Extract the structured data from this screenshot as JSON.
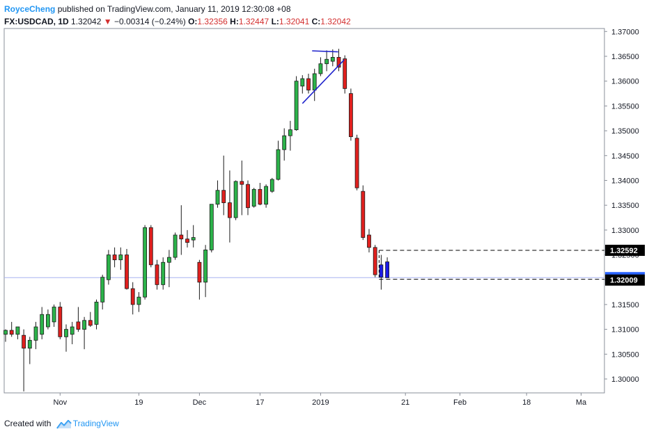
{
  "header": {
    "author": "RoyceCheng",
    "published_text": "published on TradingView.com, January 11, 2019 12:30:08 +08",
    "symbol": "FX:USDCAD, 1D",
    "last": "1.32042",
    "change_arrow": "▼",
    "change": "−0.00314 (−0.24%)",
    "o_label": "O:",
    "o_value": "1.32356",
    "h_label": "H:",
    "h_value": "1.32447",
    "l_label": "L:",
    "l_value": "1.32041",
    "c_label": "C:",
    "c_value": "1.32042"
  },
  "footer": {
    "created_with": "Created with",
    "brand": "TradingView",
    "logo_icon": "tradingview-logo-icon"
  },
  "colors": {
    "up": "#2cb34a",
    "down": "#e0201e",
    "neutral": "#1a1ae6",
    "trendline": "#1e22cc",
    "price_line": "#a8b4f0",
    "label_bg_dark": "#000000",
    "label_bg_blue": "#2962ff"
  },
  "chart_data": {
    "type": "candlestick",
    "symbol": "FX:USDCAD",
    "interval": "1D",
    "y_axis": {
      "range": [
        1.2972,
        1.3706
      ],
      "ticks": [
        "1.37000",
        "1.36500",
        "1.36000",
        "1.35500",
        "1.35000",
        "1.34500",
        "1.34000",
        "1.33500",
        "1.33000",
        "1.32500",
        "1.32000",
        "1.31500",
        "1.31000",
        "1.30500",
        "1.30000"
      ]
    },
    "x_axis": {
      "labels": [
        {
          "text": "Nov",
          "index": 9
        },
        {
          "text": "19",
          "index": 22
        },
        {
          "text": "Dec",
          "index": 32
        },
        {
          "text": "17",
          "index": 42
        },
        {
          "text": "2019",
          "index": 52
        },
        {
          "text": "21",
          "index": 66
        },
        {
          "text": "Feb",
          "index": 75
        },
        {
          "text": "18",
          "index": 86
        },
        {
          "text": "Ma",
          "index": 95
        }
      ]
    },
    "grid": false,
    "candles": [
      {
        "o": 1.309,
        "h": 1.31,
        "l": 1.3075,
        "c": 1.3098
      },
      {
        "o": 1.3098,
        "h": 1.3115,
        "l": 1.3085,
        "c": 1.309
      },
      {
        "o": 1.309,
        "h": 1.3105,
        "l": 1.308,
        "c": 1.3105
      },
      {
        "o": 1.3088,
        "h": 1.31,
        "l": 1.2975,
        "c": 1.3062
      },
      {
        "o": 1.3062,
        "h": 1.3085,
        "l": 1.303,
        "c": 1.3078
      },
      {
        "o": 1.3078,
        "h": 1.3115,
        "l": 1.306,
        "c": 1.3105
      },
      {
        "o": 1.309,
        "h": 1.3145,
        "l": 1.308,
        "c": 1.313
      },
      {
        "o": 1.3105,
        "h": 1.314,
        "l": 1.31,
        "c": 1.313
      },
      {
        "o": 1.3115,
        "h": 1.315,
        "l": 1.3105,
        "c": 1.3145
      },
      {
        "o": 1.3145,
        "h": 1.3155,
        "l": 1.308,
        "c": 1.3085
      },
      {
        "o": 1.3085,
        "h": 1.311,
        "l": 1.3055,
        "c": 1.31
      },
      {
        "o": 1.309,
        "h": 1.3115,
        "l": 1.307,
        "c": 1.3105
      },
      {
        "o": 1.3115,
        "h": 1.3145,
        "l": 1.3095,
        "c": 1.31
      },
      {
        "o": 1.31,
        "h": 1.3125,
        "l": 1.306,
        "c": 1.3118
      },
      {
        "o": 1.3118,
        "h": 1.3135,
        "l": 1.3105,
        "c": 1.3108
      },
      {
        "o": 1.311,
        "h": 1.316,
        "l": 1.31,
        "c": 1.3155
      },
      {
        "o": 1.3155,
        "h": 1.321,
        "l": 1.314,
        "c": 1.3205
      },
      {
        "o": 1.32,
        "h": 1.326,
        "l": 1.319,
        "c": 1.325
      },
      {
        "o": 1.325,
        "h": 1.3265,
        "l": 1.3225,
        "c": 1.324
      },
      {
        "o": 1.324,
        "h": 1.3265,
        "l": 1.322,
        "c": 1.325
      },
      {
        "o": 1.325,
        "h": 1.3262,
        "l": 1.318,
        "c": 1.3182
      },
      {
        "o": 1.3182,
        "h": 1.3195,
        "l": 1.313,
        "c": 1.315
      },
      {
        "o": 1.315,
        "h": 1.3175,
        "l": 1.3135,
        "c": 1.3165
      },
      {
        "o": 1.3165,
        "h": 1.331,
        "l": 1.316,
        "c": 1.3305
      },
      {
        "o": 1.3305,
        "h": 1.331,
        "l": 1.3225,
        "c": 1.323
      },
      {
        "o": 1.323,
        "h": 1.324,
        "l": 1.318,
        "c": 1.319
      },
      {
        "o": 1.319,
        "h": 1.3245,
        "l": 1.318,
        "c": 1.3235
      },
      {
        "o": 1.3235,
        "h": 1.326,
        "l": 1.3185,
        "c": 1.3245
      },
      {
        "o": 1.3245,
        "h": 1.3295,
        "l": 1.324,
        "c": 1.329
      },
      {
        "o": 1.329,
        "h": 1.335,
        "l": 1.325,
        "c": 1.3282
      },
      {
        "o": 1.3282,
        "h": 1.33,
        "l": 1.3265,
        "c": 1.3275
      },
      {
        "o": 1.328,
        "h": 1.331,
        "l": 1.3265,
        "c": 1.3285
      },
      {
        "o": 1.3235,
        "h": 1.324,
        "l": 1.316,
        "c": 1.3195
      },
      {
        "o": 1.3195,
        "h": 1.327,
        "l": 1.3165,
        "c": 1.326
      },
      {
        "o": 1.326,
        "h": 1.335,
        "l": 1.3255,
        "c": 1.3352
      },
      {
        "o": 1.3352,
        "h": 1.34,
        "l": 1.3345,
        "c": 1.338
      },
      {
        "o": 1.338,
        "h": 1.345,
        "l": 1.333,
        "c": 1.3355
      },
      {
        "o": 1.3355,
        "h": 1.342,
        "l": 1.3275,
        "c": 1.3325
      },
      {
        "o": 1.3325,
        "h": 1.34,
        "l": 1.332,
        "c": 1.3398
      },
      {
        "o": 1.3398,
        "h": 1.344,
        "l": 1.333,
        "c": 1.3392
      },
      {
        "o": 1.3392,
        "h": 1.34,
        "l": 1.333,
        "c": 1.3345
      },
      {
        "o": 1.3348,
        "h": 1.3385,
        "l": 1.3345,
        "c": 1.3382
      },
      {
        "o": 1.3382,
        "h": 1.3395,
        "l": 1.335,
        "c": 1.3352
      },
      {
        "o": 1.3352,
        "h": 1.3392,
        "l": 1.3345,
        "c": 1.3388
      },
      {
        "o": 1.3378,
        "h": 1.3405,
        "l": 1.3375,
        "c": 1.3402
      },
      {
        "o": 1.3402,
        "h": 1.348,
        "l": 1.34,
        "c": 1.3462
      },
      {
        "o": 1.3462,
        "h": 1.3505,
        "l": 1.344,
        "c": 1.349
      },
      {
        "o": 1.349,
        "h": 1.352,
        "l": 1.346,
        "c": 1.3502
      },
      {
        "o": 1.3502,
        "h": 1.361,
        "l": 1.35,
        "c": 1.36
      },
      {
        "o": 1.359,
        "h": 1.3612,
        "l": 1.3575,
        "c": 1.3605
      },
      {
        "o": 1.3605,
        "h": 1.3615,
        "l": 1.3575,
        "c": 1.3582
      },
      {
        "o": 1.3582,
        "h": 1.3625,
        "l": 1.356,
        "c": 1.3615
      },
      {
        "o": 1.3615,
        "h": 1.3648,
        "l": 1.361,
        "c": 1.3635
      },
      {
        "o": 1.3635,
        "h": 1.3662,
        "l": 1.362,
        "c": 1.3644
      },
      {
        "o": 1.364,
        "h": 1.3664,
        "l": 1.363,
        "c": 1.3648
      },
      {
        "o": 1.3648,
        "h": 1.3665,
        "l": 1.362,
        "c": 1.3628
      },
      {
        "o": 1.3645,
        "h": 1.3652,
        "l": 1.3575,
        "c": 1.3585
      },
      {
        "o": 1.3575,
        "h": 1.3585,
        "l": 1.348,
        "c": 1.3488
      },
      {
        "o": 1.3485,
        "h": 1.3492,
        "l": 1.338,
        "c": 1.3385
      },
      {
        "o": 1.3378,
        "h": 1.339,
        "l": 1.328,
        "c": 1.3285
      },
      {
        "o": 1.329,
        "h": 1.3302,
        "l": 1.3255,
        "c": 1.3265
      },
      {
        "o": 1.3265,
        "h": 1.327,
        "l": 1.3205,
        "c": 1.321
      },
      {
        "o": 1.323,
        "h": 1.325,
        "l": 1.318,
        "c": 1.3205
      },
      {
        "o": 1.3236,
        "h": 1.3245,
        "l": 1.3204,
        "c": 1.3204
      }
    ],
    "price_line": {
      "value": 1.32042,
      "label": "1.32042"
    },
    "levels": [
      {
        "value": 1.32592,
        "label": "1.32592"
      },
      {
        "value": 1.32009,
        "label": "1.32009"
      }
    ],
    "trendlines": [
      {
        "from": {
          "index": 49,
          "price": 1.3555
        },
        "to": {
          "index": 55.9,
          "price": 1.3643
        }
      },
      {
        "from": {
          "index": 50.6,
          "price": 1.3661
        },
        "to": {
          "index": 54.9,
          "price": 1.3659
        }
      }
    ]
  }
}
